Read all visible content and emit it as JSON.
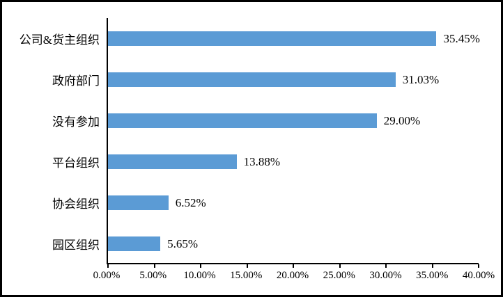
{
  "chart_data": {
    "type": "bar",
    "orientation": "horizontal",
    "categories": [
      "公司&货主组织",
      "政府部门",
      "没有参加",
      "平台组织",
      "协会组织",
      "园区组织"
    ],
    "values": [
      35.45,
      31.03,
      29.0,
      13.88,
      6.52,
      5.65
    ],
    "value_labels": [
      "35.45%",
      "31.03%",
      "29.00%",
      "13.88%",
      "6.52%",
      "5.65%"
    ],
    "x_ticks": [
      0,
      5,
      10,
      15,
      20,
      25,
      30,
      35,
      40
    ],
    "x_tick_labels": [
      "0.00%",
      "5.00%",
      "10.00%",
      "15.00%",
      "20.00%",
      "25.00%",
      "30.00%",
      "35.00%",
      "40.00%"
    ],
    "xlim": [
      0,
      40
    ],
    "title": "",
    "xlabel": "",
    "ylabel": "",
    "grid": false,
    "legend": false,
    "bar_color": "#5B9BD5",
    "axis_color": "#000000",
    "text_color": "#000000",
    "frame_color": "#000000",
    "background_color": "#ffffff"
  }
}
